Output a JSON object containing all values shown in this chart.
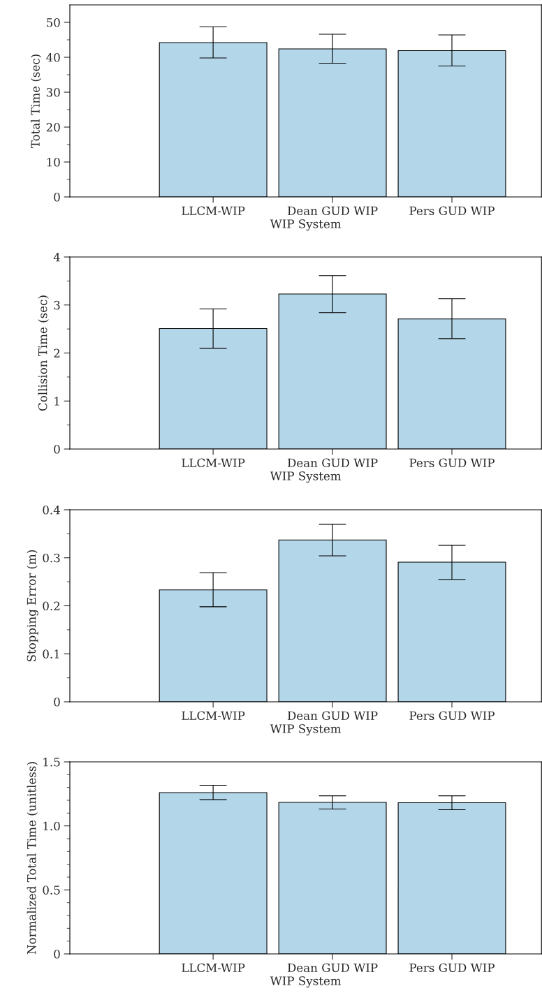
{
  "chart_data": [
    {
      "type": "bar",
      "categories": [
        "LLCM-WIP",
        "Dean GUD WIP",
        "Pers GUD WIP"
      ],
      "values": [
        44.2,
        42.4,
        41.9
      ],
      "errors": [
        [
          39.8,
          48.7
        ],
        [
          38.3,
          46.6
        ],
        [
          37.5,
          46.4
        ]
      ],
      "color": "#b3d6e8",
      "xlabel": "WIP System",
      "ylabel": "Total Time (sec)",
      "ylim": [
        0,
        55
      ],
      "yticks": [
        0,
        {
          "value": 5,
          "label": null
        },
        10,
        {
          "value": 15,
          "label": null
        },
        20,
        {
          "value": 25,
          "label": null
        },
        30,
        {
          "value": 35,
          "label": null
        },
        40,
        {
          "value": 45,
          "label": null
        },
        50
      ],
      "grid": false
    },
    {
      "type": "bar",
      "categories": [
        "LLCM-WIP",
        "Dean GUD WIP",
        "Pers GUD WIP"
      ],
      "values": [
        2.51,
        3.23,
        2.71
      ],
      "errors": [
        [
          2.1,
          2.92
        ],
        [
          2.84,
          3.61
        ],
        [
          2.3,
          3.13
        ]
      ],
      "color": "#b3d6e8",
      "xlabel": "WIP System",
      "ylabel": "Collision Time (sec)",
      "ylim": [
        0,
        4
      ],
      "yticks": [
        0,
        {
          "value": 0.5,
          "label": null
        },
        1,
        {
          "value": 1.5,
          "label": null
        },
        2,
        {
          "value": 2.5,
          "label": null
        },
        3,
        {
          "value": 3.5,
          "label": null
        },
        4
      ],
      "grid": false
    },
    {
      "type": "bar",
      "categories": [
        "LLCM-WIP",
        "Dean GUD WIP",
        "Pers GUD WIP"
      ],
      "values": [
        0.233,
        0.337,
        0.291
      ],
      "errors": [
        [
          0.198,
          0.269
        ],
        [
          0.304,
          0.37
        ],
        [
          0.255,
          0.326
        ]
      ],
      "color": "#b3d6e8",
      "xlabel": "WIP System",
      "ylabel": "Stopping Error (m)",
      "ylim": [
        0,
        0.4
      ],
      "yticks": [
        0,
        {
          "value": 0.05,
          "label": null
        },
        0.1,
        {
          "value": 0.15,
          "label": null
        },
        0.2,
        {
          "value": 0.25,
          "label": null
        },
        0.3,
        {
          "value": 0.35,
          "label": null
        },
        0.4
      ],
      "grid": false
    },
    {
      "type": "bar",
      "categories": [
        "LLCM-WIP",
        "Dean GUD WIP",
        "Pers GUD WIP"
      ],
      "values": [
        1.26,
        1.184,
        1.181
      ],
      "errors": [
        [
          1.205,
          1.317
        ],
        [
          1.132,
          1.235
        ],
        [
          1.126,
          1.235
        ]
      ],
      "color": "#b3d6e8",
      "xlabel": "WIP System",
      "ylabel": "Normalized Total Time (unitless)",
      "ylim": [
        0,
        1.5
      ],
      "yticks": [
        0,
        {
          "value": 0.1,
          "label": null
        },
        {
          "value": 0.2,
          "label": null
        },
        {
          "value": 0.3,
          "label": null
        },
        {
          "value": 0.4,
          "label": null
        },
        {
          "value": 0.5,
          "label": "0.5"
        },
        {
          "value": 0.6,
          "label": null
        },
        {
          "value": 0.7,
          "label": null
        },
        {
          "value": 0.8,
          "label": null
        },
        {
          "value": 0.9,
          "label": null
        },
        {
          "value": 1.0,
          "label": "1.0"
        },
        {
          "value": 1.1,
          "label": null
        },
        {
          "value": 1.2,
          "label": null
        },
        {
          "value": 1.3,
          "label": null
        },
        {
          "value": 1.4,
          "label": null
        },
        {
          "value": 1.5,
          "label": "1.5"
        }
      ],
      "grid": false
    }
  ]
}
